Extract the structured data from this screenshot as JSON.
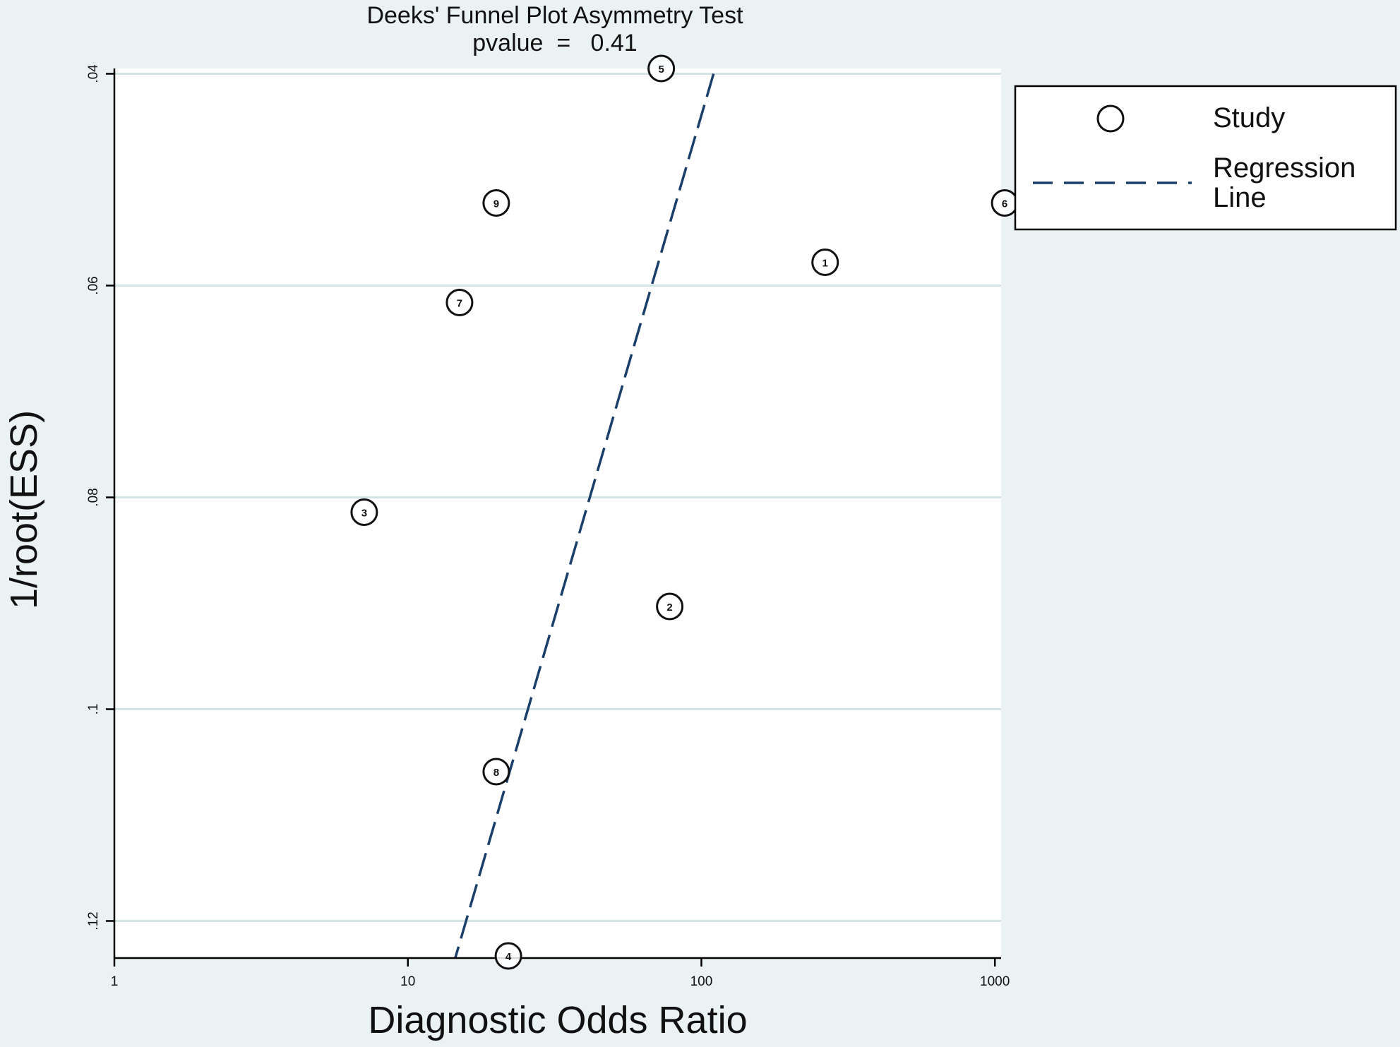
{
  "chart_data": {
    "type": "scatter",
    "title": "Deeks' Funnel Plot Asymmetry Test",
    "subtitle": "pvalue  =   0.41",
    "xlabel": "Diagnostic Odds Ratio",
    "ylabel": "1/root(ESS)",
    "x_scale": "log",
    "xlim": [
      1,
      1050
    ],
    "ylim": [
      0.0395,
      0.1235
    ],
    "y_reversed": true,
    "x_ticks": [
      {
        "value": 1,
        "label": "1"
      },
      {
        "value": 10,
        "label": "10"
      },
      {
        "value": 100,
        "label": "100"
      },
      {
        "value": 1000,
        "label": "1000"
      }
    ],
    "y_ticks": [
      {
        "value": 0.04,
        "label": ".04"
      },
      {
        "value": 0.06,
        "label": ".06"
      },
      {
        "value": 0.08,
        "label": ".08"
      },
      {
        "value": 0.1,
        "label": ".1"
      },
      {
        "value": 0.12,
        "label": ".12"
      }
    ],
    "grid": "horizontal",
    "legend_position": "right",
    "legend": {
      "study": "Study",
      "regression": "Regression\nLine"
    },
    "series": [
      {
        "name": "Study",
        "points": [
          {
            "label": "1",
            "x": 264,
            "y": 0.0578
          },
          {
            "label": "2",
            "x": 78,
            "y": 0.0903
          },
          {
            "label": "3",
            "x": 7.1,
            "y": 0.0814
          },
          {
            "label": "4",
            "x": 22,
            "y": 0.1233
          },
          {
            "label": "5",
            "x": 73,
            "y": 0.0395
          },
          {
            "label": "6",
            "x": 1080,
            "y": 0.0522
          },
          {
            "label": "7",
            "x": 15,
            "y": 0.0616
          },
          {
            "label": "8",
            "x": 20,
            "y": 0.1059
          },
          {
            "label": "9",
            "x": 20,
            "y": 0.0522
          }
        ]
      },
      {
        "name": "Regression Line",
        "line": [
          {
            "x": 110,
            "y": 0.04
          },
          {
            "x": 14.5,
            "y": 0.1235
          }
        ]
      }
    ],
    "colors": {
      "plot_background": "#ffffff",
      "outer_background": "#eaf2f3",
      "grid": "#d3e4e6",
      "points": "#111111",
      "regression": "#1a3f6b"
    }
  }
}
